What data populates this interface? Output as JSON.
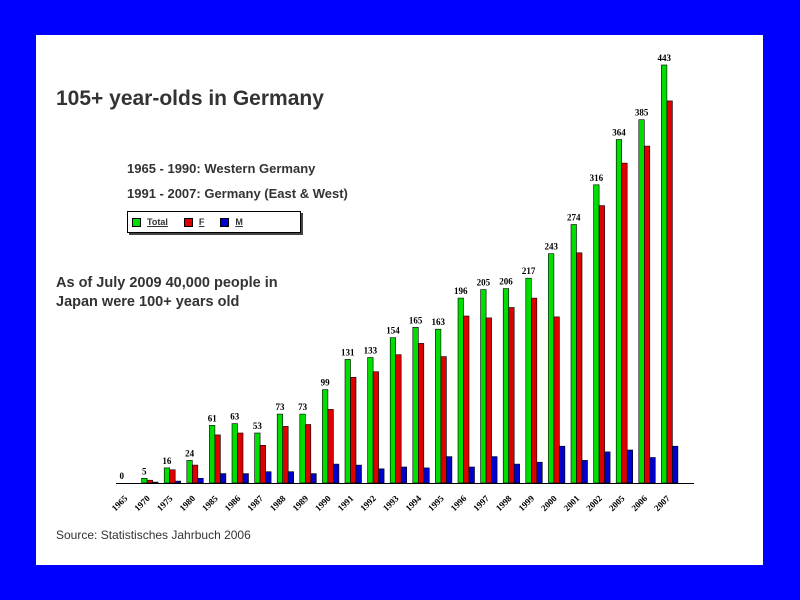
{
  "colors": {
    "background": "#0000ff",
    "slide": "#ffffff",
    "total": "#00dd00",
    "female": "#dd0000",
    "male": "#0000cc"
  },
  "notes": {
    "line1": "1965 - 1990: Western Germany",
    "line2": "1991 - 2007: Germany (East & West)",
    "japan_line1": "As of July 2009 40,000 people in",
    "japan_line2": "Japan were 100+ years old"
  },
  "source": "Source: Statistisches Jahrbuch 2006",
  "chart_data": {
    "type": "bar",
    "title": "105+ year-olds in Germany",
    "xlabel": "",
    "ylabel": "",
    "ylim": [
      0,
      443
    ],
    "legend": {
      "placement": "top-left",
      "entries": [
        "Total",
        "F",
        "M"
      ]
    },
    "categories": [
      "1965",
      "1970",
      "1975",
      "1980",
      "1985",
      "1986",
      "1987",
      "1988",
      "1989",
      "1990",
      "1991",
      "1992",
      "1993",
      "1994",
      "1995",
      "1996",
      "1997",
      "1998",
      "1999",
      "2000",
      "2001",
      "2002",
      "2005",
      "2006",
      "2007"
    ],
    "series": [
      {
        "name": "Total",
        "color": "#00dd00",
        "values": [
          0,
          5,
          16,
          24,
          61,
          63,
          53,
          73,
          73,
          99,
          131,
          133,
          154,
          165,
          163,
          196,
          205,
          206,
          217,
          243,
          274,
          316,
          364,
          385,
          443
        ]
      },
      {
        "name": "F",
        "color": "#dd0000",
        "values": [
          0,
          3,
          14,
          19,
          51,
          53,
          40,
          60,
          62,
          78,
          112,
          118,
          136,
          148,
          134,
          177,
          175,
          186,
          196,
          176,
          244,
          294,
          339,
          357,
          405
        ]
      },
      {
        "name": "M",
        "color": "#0000cc",
        "values": [
          0,
          1,
          2,
          5,
          10,
          10,
          12,
          12,
          10,
          20,
          19,
          15,
          17,
          16,
          28,
          17,
          28,
          20,
          22,
          39,
          24,
          33,
          35,
          27,
          39
        ]
      }
    ],
    "data_labels": [
      "0",
      "5",
      "16",
      "24",
      "61",
      "63",
      "53",
      "73",
      "73",
      "99",
      "131",
      "133",
      "154",
      "165",
      "163",
      "196",
      "205",
      "206",
      "217",
      "243",
      "274",
      "316",
      "364",
      "385",
      "443"
    ]
  }
}
